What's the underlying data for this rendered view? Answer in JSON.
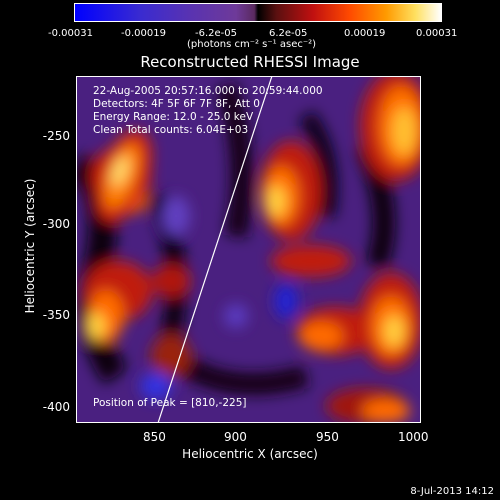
{
  "colorbar": {
    "ticks": [
      "-0.00031",
      "-0.00019",
      "-6.2e-05",
      "6.2e-05",
      "0.00019",
      "0.00031"
    ],
    "unit": "(photons cm⁻² s⁻¹ asec⁻²)"
  },
  "plot": {
    "title": "Reconstructed RHESSI Image",
    "info": {
      "time": "22-Aug-2005 20:57:16.000 to 20:59:44.000",
      "detectors": "Detectors: 4F 5F 6F 7F 8F, Att 0",
      "energy": "Energy Range: 12.0 - 25.0 keV",
      "clean": "Clean     Total counts: 6.04E+03"
    },
    "peak": "Position of Peak = [810,-225]",
    "xlabel": "Heliocentric X (arcsec)",
    "ylabel": "Heliocentric Y (arcsec)",
    "xticks": [
      "850",
      "900",
      "950",
      "1000"
    ],
    "yticks": [
      "-250",
      "-300",
      "-350",
      "-400"
    ]
  },
  "footer": "8-Jul-2013 14:12"
}
